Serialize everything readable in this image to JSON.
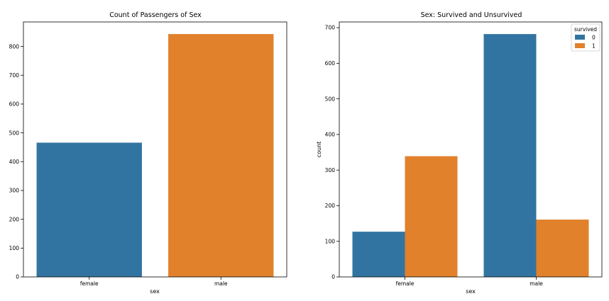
{
  "chart_data": [
    {
      "type": "bar",
      "title": "Count of Passengers of Sex",
      "xlabel": "sex",
      "ylabel": "",
      "categories": [
        "female",
        "male"
      ],
      "values": [
        466,
        843
      ],
      "colors": [
        "#3274a1",
        "#e1812c"
      ],
      "ylim": [
        0,
        885
      ],
      "yticks": [
        0,
        100,
        200,
        300,
        400,
        500,
        600,
        700,
        800
      ],
      "grid": false
    },
    {
      "type": "bar",
      "title": "Sex: Survived and Unsurvived",
      "xlabel": "sex",
      "ylabel": "count",
      "categories": [
        "female",
        "male"
      ],
      "series": [
        {
          "name": "0",
          "values": [
            127,
            682
          ],
          "color": "#3274a1"
        },
        {
          "name": "1",
          "values": [
            339,
            161
          ],
          "color": "#e1812c"
        }
      ],
      "legend_title": "survived",
      "legend_placement": "top-right",
      "ylim": [
        0,
        716
      ],
      "yticks": [
        0,
        100,
        200,
        300,
        400,
        500,
        600,
        700
      ],
      "grid": false
    }
  ]
}
